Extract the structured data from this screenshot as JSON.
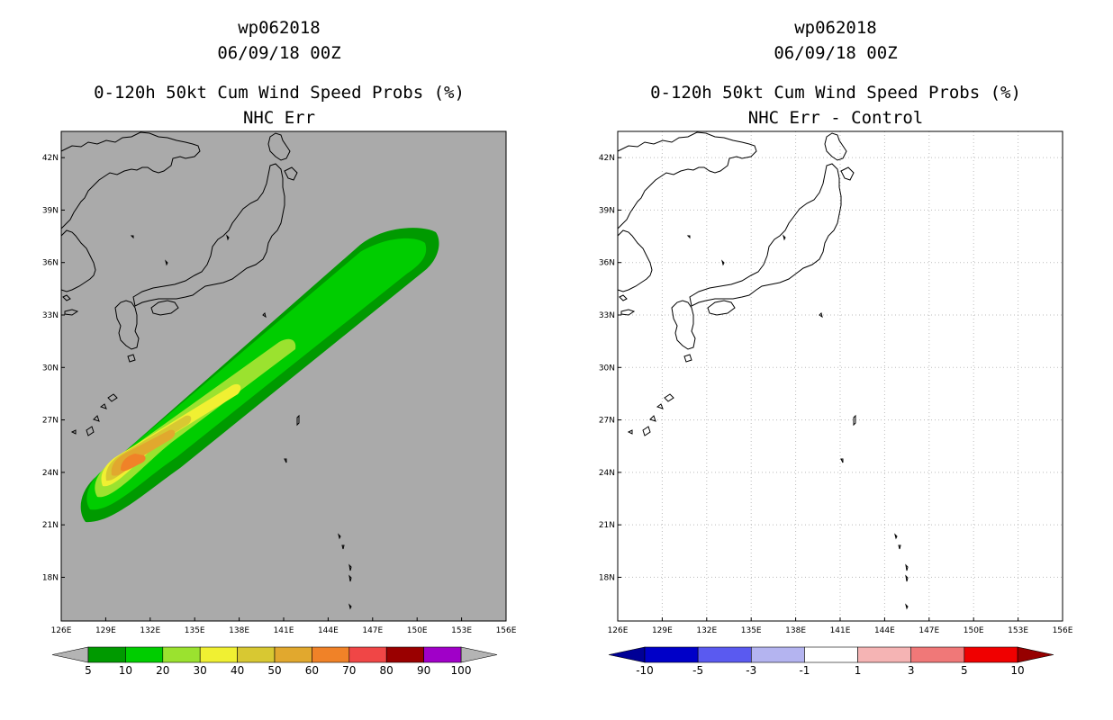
{
  "left_panel": {
    "line1": "wp062018",
    "line2": "06/09/18 00Z",
    "line3": "0-120h 50kt Cum Wind Speed Probs (%)",
    "line4": "NHC Err",
    "colorbar": {
      "labels": [
        "5",
        "10",
        "20",
        "30",
        "40",
        "50",
        "60",
        "70",
        "80",
        "90",
        "100"
      ],
      "colors": [
        "#009a00",
        "#00cd00",
        "#9be22f",
        "#f0f032",
        "#d8c832",
        "#e1a82e",
        "#f08228",
        "#f04646",
        "#9a0000",
        "#a000c8"
      ],
      "end_colors": [
        "#b4b4b4",
        "#b4b4b4"
      ]
    }
  },
  "right_panel": {
    "line1": "wp062018",
    "line2": "06/09/18 00Z",
    "line3": "0-120h 50kt Cum Wind Speed Probs (%)",
    "line4": "NHC Err - Control",
    "colorbar": {
      "labels": [
        "-10",
        "-5",
        "-3",
        "-1",
        "1",
        "3",
        "5",
        "10"
      ],
      "colors": [
        "#0000c8",
        "#5a5af0",
        "#b4b4f0",
        "#ffffff",
        "#f5b4b4",
        "#f07878",
        "#f00000"
      ],
      "end_colors": [
        "#000096",
        "#960000"
      ]
    }
  },
  "map": {
    "lat_labels": [
      "42N",
      "39N",
      "36N",
      "33N",
      "30N",
      "27N",
      "24N",
      "21N",
      "18N"
    ],
    "lon_labels": [
      "126E",
      "129E",
      "132E",
      "135E",
      "138E",
      "141E",
      "144E",
      "147E",
      "150E",
      "153E",
      "156E"
    ],
    "lat_min": 15.5,
    "lat_max": 43.5,
    "lon_min": 126,
    "lon_max": 156,
    "left_background": "#aaaaaa",
    "right_background": "#ffffff",
    "probability_swath": {
      "track_start": [
        128.5,
        22.0
      ],
      "track_end": [
        151.5,
        37.3
      ],
      "contour_colors": [
        "#009a00",
        "#00cd00",
        "#9be22f",
        "#f0f032",
        "#d8c832",
        "#e1a82e",
        "#f08228"
      ]
    }
  }
}
